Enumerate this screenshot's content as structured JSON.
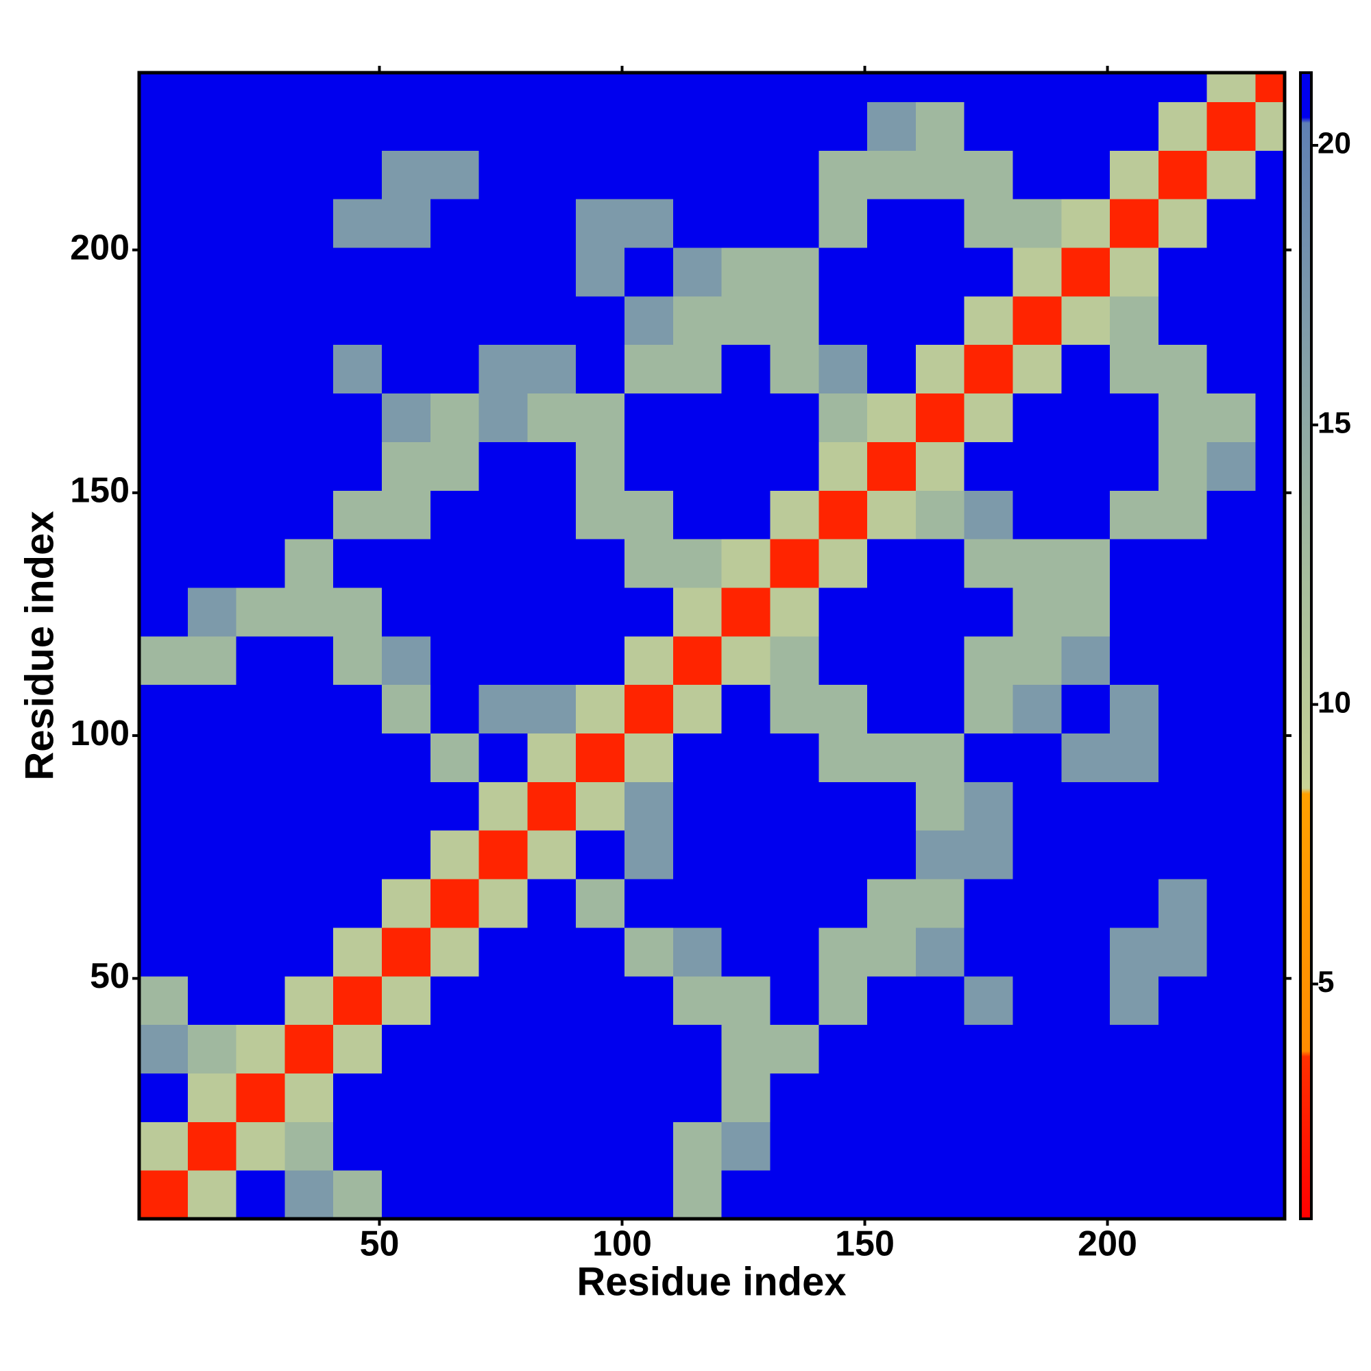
{
  "chart_data": {
    "type": "heatmap",
    "xlabel": "Residue index",
    "ylabel": "Residue index",
    "bins": [
      0.5,
      10.5,
      20.5,
      30.5,
      40.5,
      50.5,
      60.5,
      70.5,
      80.5,
      90.5,
      100.5,
      110.5,
      120.5,
      130.5,
      140.5,
      150.5,
      160.5,
      170.5,
      180.5,
      190.5,
      200.5,
      210.5,
      220.5,
      230.5,
      236.5
    ],
    "xlim": [
      0.5,
      236.5
    ],
    "ylim": [
      0.5,
      236.5
    ],
    "xticks": [
      50,
      100,
      150,
      200
    ],
    "yticks": [
      50,
      100,
      150,
      200
    ],
    "zlim": [
      0.8,
      21.3
    ],
    "zticks": [
      5,
      10,
      15,
      20
    ],
    "colorscale": [
      [
        0.8,
        "#ff0000"
      ],
      [
        3.7,
        "#ff3000"
      ],
      [
        3.8,
        "#ff8c00"
      ],
      [
        8.4,
        "#ffa000"
      ],
      [
        8.5,
        "#c8d296"
      ],
      [
        12,
        "#a9bf9c"
      ],
      [
        20.4,
        "#5f80b4"
      ],
      [
        20.5,
        "#0000ee"
      ],
      [
        21.3,
        "#0000ee"
      ]
    ],
    "z": [
      [
        3,
        10,
        21,
        17,
        13,
        21,
        21,
        21,
        21,
        21,
        21,
        13,
        21,
        21,
        21,
        21,
        21,
        21,
        21,
        21,
        21,
        21,
        21,
        21
      ],
      [
        10,
        3,
        10,
        13,
        21,
        21,
        21,
        21,
        21,
        21,
        21,
        13,
        17,
        21,
        21,
        21,
        21,
        21,
        21,
        21,
        21,
        21,
        21,
        21
      ],
      [
        21,
        10,
        3,
        10,
        21,
        21,
        21,
        21,
        21,
        21,
        21,
        21,
        13,
        21,
        21,
        21,
        21,
        21,
        21,
        21,
        21,
        21,
        21,
        21
      ],
      [
        17,
        13,
        10,
        3,
        10,
        21,
        21,
        21,
        21,
        21,
        21,
        21,
        13,
        13,
        21,
        21,
        21,
        21,
        21,
        21,
        21,
        21,
        21,
        21
      ],
      [
        13,
        21,
        21,
        10,
        3,
        10,
        21,
        21,
        21,
        21,
        21,
        13,
        13,
        21,
        13,
        21,
        21,
        17,
        21,
        21,
        17,
        21,
        21,
        21
      ],
      [
        21,
        21,
        21,
        21,
        10,
        3,
        10,
        21,
        21,
        21,
        13,
        17,
        21,
        21,
        13,
        13,
        17,
        21,
        21,
        21,
        17,
        17,
        21,
        21
      ],
      [
        21,
        21,
        21,
        21,
        21,
        10,
        3,
        10,
        21,
        13,
        21,
        21,
        21,
        21,
        21,
        13,
        13,
        21,
        21,
        21,
        21,
        17,
        21,
        21
      ],
      [
        21,
        21,
        21,
        21,
        21,
        21,
        10,
        3,
        10,
        21,
        17,
        21,
        21,
        21,
        21,
        21,
        17,
        17,
        21,
        21,
        21,
        21,
        21,
        21
      ],
      [
        21,
        21,
        21,
        21,
        21,
        21,
        21,
        10,
        3,
        10,
        17,
        21,
        21,
        21,
        21,
        21,
        13,
        17,
        21,
        21,
        21,
        21,
        21,
        21
      ],
      [
        21,
        21,
        21,
        21,
        21,
        21,
        13,
        21,
        10,
        3,
        10,
        21,
        21,
        21,
        13,
        13,
        13,
        21,
        21,
        17,
        17,
        21,
        21,
        21
      ],
      [
        21,
        21,
        21,
        21,
        21,
        13,
        21,
        17,
        17,
        10,
        3,
        10,
        21,
        13,
        13,
        21,
        21,
        13,
        17,
        21,
        17,
        21,
        21,
        21
      ],
      [
        13,
        13,
        21,
        21,
        13,
        17,
        21,
        21,
        21,
        21,
        10,
        3,
        10,
        13,
        21,
        21,
        21,
        13,
        13,
        17,
        21,
        21,
        21,
        21
      ],
      [
        21,
        17,
        13,
        13,
        13,
        21,
        21,
        21,
        21,
        21,
        21,
        10,
        3,
        10,
        21,
        21,
        21,
        21,
        13,
        13,
        21,
        21,
        21,
        21
      ],
      [
        21,
        21,
        21,
        13,
        21,
        21,
        21,
        21,
        21,
        21,
        13,
        13,
        10,
        3,
        10,
        21,
        21,
        13,
        13,
        13,
        21,
        21,
        21,
        21
      ],
      [
        21,
        21,
        21,
        21,
        13,
        13,
        21,
        21,
        21,
        13,
        13,
        21,
        21,
        10,
        3,
        10,
        13,
        17,
        21,
        21,
        13,
        13,
        21,
        21
      ],
      [
        21,
        21,
        21,
        21,
        21,
        13,
        13,
        21,
        21,
        13,
        21,
        21,
        21,
        21,
        10,
        3,
        10,
        21,
        21,
        21,
        21,
        13,
        17,
        21
      ],
      [
        21,
        21,
        21,
        21,
        21,
        17,
        13,
        17,
        13,
        13,
        21,
        21,
        21,
        21,
        13,
        10,
        3,
        10,
        21,
        21,
        21,
        13,
        13,
        21
      ],
      [
        21,
        21,
        21,
        21,
        17,
        21,
        21,
        17,
        17,
        21,
        13,
        13,
        21,
        13,
        17,
        21,
        10,
        3,
        10,
        21,
        13,
        13,
        21,
        21
      ],
      [
        21,
        21,
        21,
        21,
        21,
        21,
        21,
        21,
        21,
        21,
        17,
        13,
        13,
        13,
        21,
        21,
        21,
        10,
        3,
        10,
        13,
        21,
        21,
        21
      ],
      [
        21,
        21,
        21,
        21,
        21,
        21,
        21,
        21,
        21,
        17,
        21,
        17,
        13,
        13,
        21,
        21,
        21,
        21,
        10,
        3,
        10,
        21,
        21,
        21
      ],
      [
        21,
        21,
        21,
        21,
        17,
        17,
        21,
        21,
        21,
        17,
        17,
        21,
        21,
        21,
        13,
        21,
        21,
        13,
        13,
        10,
        3,
        10,
        21,
        21
      ],
      [
        21,
        21,
        21,
        21,
        21,
        17,
        17,
        21,
        21,
        21,
        21,
        21,
        21,
        21,
        13,
        13,
        13,
        13,
        21,
        21,
        10,
        3,
        10,
        21
      ],
      [
        21,
        21,
        21,
        21,
        21,
        21,
        21,
        21,
        21,
        21,
        21,
        21,
        21,
        21,
        21,
        17,
        13,
        21,
        21,
        21,
        21,
        10,
        3,
        10
      ],
      [
        21,
        21,
        21,
        21,
        21,
        21,
        21,
        21,
        21,
        21,
        21,
        21,
        21,
        21,
        21,
        21,
        21,
        21,
        21,
        21,
        21,
        21,
        10,
        3
      ]
    ]
  }
}
